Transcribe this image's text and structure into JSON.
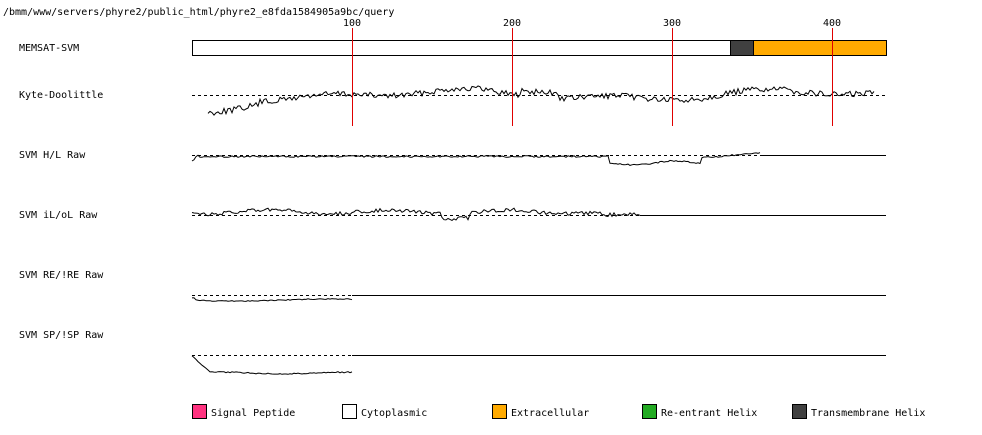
{
  "header": {
    "path_text": "/bmm/www/servers/phyre2/public_html/phyre2_e8fda1584905a9bc/query"
  },
  "axis": {
    "ticks": [
      "100",
      "200",
      "300",
      "400"
    ],
    "tick_values": [
      100,
      200,
      300,
      400
    ],
    "max_residue": 433,
    "tick_color": "#e00000"
  },
  "tracks": [
    {
      "label": "MEMSAT-SVM"
    },
    {
      "label": "Kyte-Doolittle"
    },
    {
      "label": "SVM H/L Raw"
    },
    {
      "label": "SVM iL/oL Raw"
    },
    {
      "label": "SVM RE/!RE Raw"
    },
    {
      "label": "SVM SP/!SP Raw"
    }
  ],
  "memsat_segments": [
    {
      "type": "cytoplasmic",
      "start": 1,
      "end": 335
    },
    {
      "type": "transmembrane",
      "start": 336,
      "end": 350
    },
    {
      "type": "extracellular",
      "start": 351,
      "end": 433
    }
  ],
  "legend": [
    {
      "label": "Signal Peptide",
      "color": "#ff3380"
    },
    {
      "label": "Cytoplasmic",
      "color": "#ffffff"
    },
    {
      "label": "Extracellular",
      "color": "#ffaa00"
    },
    {
      "label": "Re-entrant Helix",
      "color": "#22aa22"
    },
    {
      "label": "Transmembrane Helix",
      "color": "#404040"
    }
  ]
}
